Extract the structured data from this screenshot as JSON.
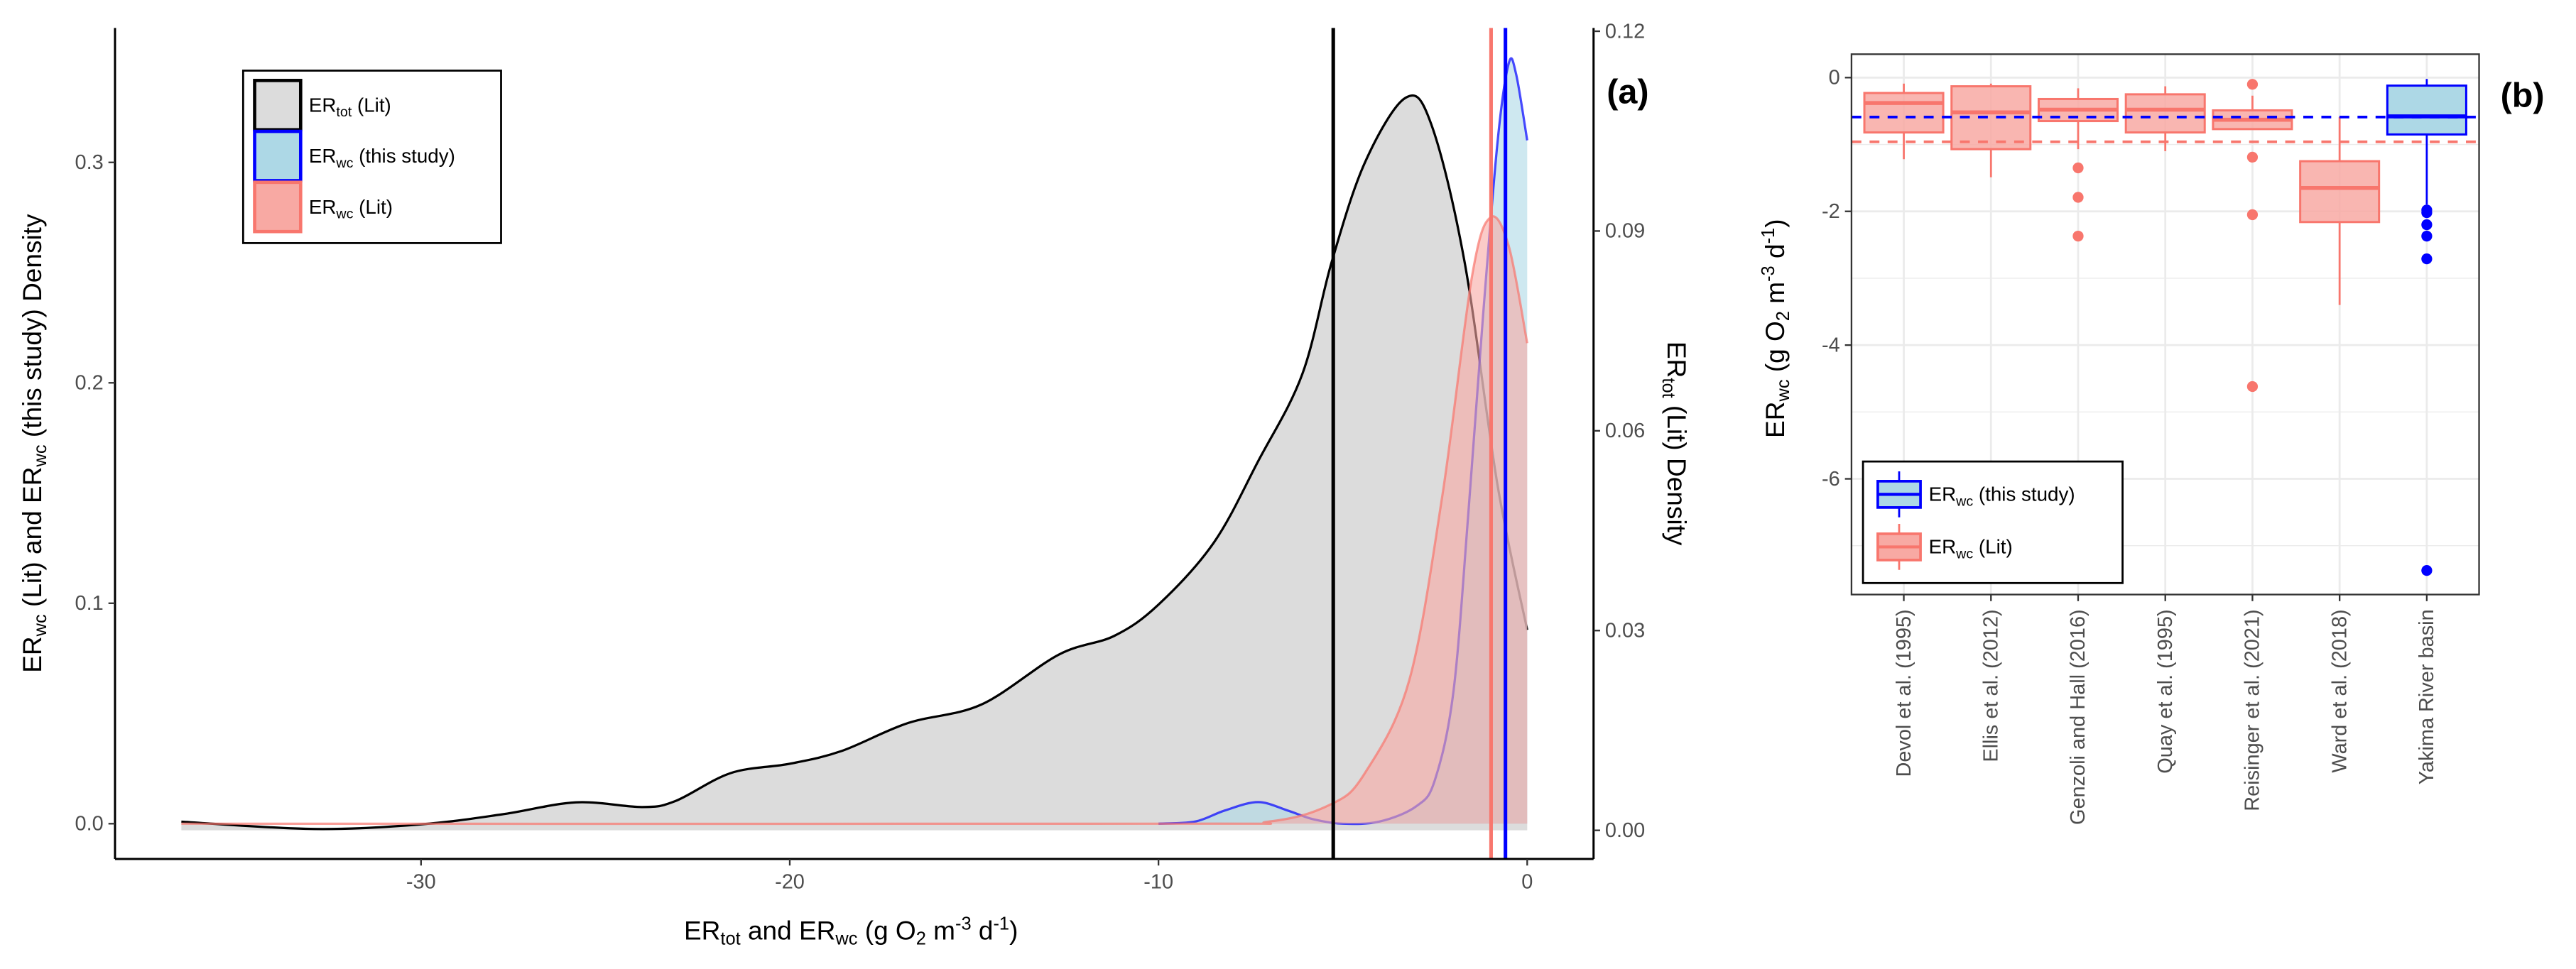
{
  "chart_data": [
    {
      "panel_label": "(a)",
      "type": "area",
      "xlabel": {
        "main": "ER",
        "sub1": "tot",
        "mid": " and ER",
        "sub2": "wc",
        "tail": " (g O",
        "sub3": "2",
        "tail2": " m",
        "sup1": "-3",
        "tail3": " d",
        "sup2": "-1",
        "end": ")"
      },
      "ylabel_left": {
        "a": "ER",
        "sub1": "wc",
        "b": " (Lit) and ER",
        "sub2": "wc",
        "c": " (this study) Density"
      },
      "ylabel_right": {
        "a": "ER",
        "sub": "tot",
        "b": " (Lit) Density"
      },
      "xlim": [
        -38.3,
        1.8
      ],
      "ylim_left": [
        -0.016,
        0.361
      ],
      "ylim_right": [
        -0.0043,
        0.1205
      ],
      "xticks": [
        "-30",
        "-20",
        "-10",
        "0"
      ],
      "xtick_values": [
        -30,
        -20,
        -10,
        0
      ],
      "yticks_left": [
        "0.0",
        "0.1",
        "0.2",
        "0.3"
      ],
      "ytick_values_left": [
        0,
        0.1,
        0.2,
        0.3
      ],
      "yticks_right": [
        "0.00",
        "0.03",
        "0.06",
        "0.09",
        "0.12"
      ],
      "ytick_values_right": [
        0,
        0.03,
        0.06,
        0.09,
        0.12
      ],
      "grid": false,
      "legend_position": "top-left",
      "series": [
        {
          "name": {
            "a": "ER",
            "sub": "tot",
            "b": " (Lit)"
          },
          "axis": "right",
          "line_color": "#000000",
          "fill_color": "#dcdcdc",
          "x": [
            -36.5,
            -32.9,
            -30,
            -27.8,
            -25.8,
            -24.0,
            -23.1,
            -21.6,
            -20,
            -18.6,
            -16.8,
            -14.8,
            -12.7,
            -11.2,
            -10,
            -8.5,
            -7.3,
            -6.1,
            -5.3,
            -4.4,
            -3.3,
            -2.6,
            -1.7,
            -0.8,
            0
          ],
          "y": [
            0.0013,
            0.0002,
            0.0009,
            0.0024,
            0.0042,
            0.0035,
            0.0044,
            0.0086,
            0.01,
            0.0119,
            0.0161,
            0.0189,
            0.0264,
            0.0292,
            0.0339,
            0.0432,
            0.0554,
            0.0685,
            0.0854,
            0.1003,
            0.11,
            0.106,
            0.0854,
            0.0517,
            0.0301
          ],
          "mean_line": -5.26
        },
        {
          "name": {
            "a": "ER",
            "sub": "wc",
            "b": " (this study)"
          },
          "axis": "left",
          "line_color": "#0000ff",
          "fill_color": "#add8e6",
          "x": [
            -10,
            -9,
            -8.2,
            -7.3,
            -6.5,
            -5.8,
            -5,
            -4,
            -3,
            -2.5,
            -2,
            -1.6,
            -1.2,
            -0.8,
            -0.5,
            -0.3,
            0
          ],
          "y": [
            0,
            0.001,
            0.006,
            0.0098,
            0.006,
            0.002,
            0,
            0.001,
            0.008,
            0.02,
            0.06,
            0.14,
            0.23,
            0.31,
            0.345,
            0.34,
            0.31
          ],
          "mean_line": -0.59
        },
        {
          "name": {
            "a": "ER",
            "sub": "wc",
            "b": " (Lit)"
          },
          "axis": "left",
          "line_color": "#f8766d",
          "fill_color": "#f8a9a3",
          "x": [
            -36.5,
            -10,
            -7,
            -5.3,
            -4.4,
            -3.2,
            -2.3,
            -1.5,
            -1.0,
            -0.5,
            0
          ],
          "y": [
            0,
            0,
            0.001,
            0.009,
            0.023,
            0.065,
            0.149,
            0.248,
            0.275,
            0.262,
            0.218
          ],
          "mean_line": -0.98
        }
      ]
    },
    {
      "panel_label": "(b)",
      "type": "box",
      "ylabel": {
        "a": "ER",
        "sub": "wc",
        "b": " (g O",
        "sub2": "2",
        "c": " m",
        "sup1": "-3",
        "d": " d",
        "sup2": "-1",
        "e": ")"
      },
      "ylim": [
        -7.73,
        0.35
      ],
      "yticks": [
        "0",
        "-2",
        "-4",
        "-6"
      ],
      "ytick_values": [
        0,
        -2,
        -4,
        -6
      ],
      "grid": true,
      "legend_position": "bottom-left",
      "categories": [
        "Devol et al. (1995)",
        "Ellis et al. (2012)",
        "Genzoli and Hall (2016)",
        "Quay et al. (1995)",
        "Reisinger et al. (2021)",
        "Ward et al. (2018)",
        "Yakima River basin"
      ],
      "boxes": [
        {
          "group": "lit",
          "whisker_high": -0.09,
          "q3": -0.23,
          "median": -0.38,
          "q1": -0.82,
          "whisker_low": -1.22,
          "outliers": []
        },
        {
          "group": "lit",
          "whisker_high": -0.09,
          "q3": -0.13,
          "median": -0.52,
          "q1": -1.07,
          "whisker_low": -1.49,
          "outliers": []
        },
        {
          "group": "lit",
          "whisker_high": -0.16,
          "q3": -0.32,
          "median": -0.48,
          "q1": -0.65,
          "whisker_low": -1.07,
          "outliers": [
            -1.35,
            -1.79,
            -2.37
          ]
        },
        {
          "group": "lit",
          "whisker_high": -0.13,
          "q3": -0.25,
          "median": -0.48,
          "q1": -0.82,
          "whisker_low": -1.1,
          "outliers": []
        },
        {
          "group": "lit",
          "whisker_high": -0.27,
          "q3": -0.49,
          "median": -0.63,
          "q1": -0.77,
          "whisker_low": -0.77,
          "outliers": [
            -0.1,
            -1.19,
            -2.05,
            -4.62
          ]
        },
        {
          "group": "lit",
          "whisker_high": -0.59,
          "q3": -1.25,
          "median": -1.65,
          "q1": -2.16,
          "whisker_low": -3.4,
          "outliers": []
        },
        {
          "group": "study",
          "whisker_high": -0.02,
          "q3": -0.12,
          "median": -0.58,
          "q1": -0.85,
          "whisker_low": -1.9,
          "outliers": [
            -1.98,
            -2.02,
            -2.2,
            -2.37,
            -2.71,
            -7.37
          ]
        }
      ],
      "reference_lines": [
        {
          "group": "study",
          "value": -0.59,
          "color": "#0000ff"
        },
        {
          "group": "lit",
          "value": -0.96,
          "color": "#f8766d"
        }
      ],
      "legend": [
        {
          "group": "study",
          "a": "ER",
          "sub": "wc",
          "b": " (this study)",
          "line_color": "#0000ff",
          "fill_color": "#add8e6"
        },
        {
          "group": "lit",
          "a": "ER",
          "sub": "wc",
          "b": " (Lit)",
          "line_color": "#f8766d",
          "fill_color": "#f8a9a3"
        }
      ]
    }
  ]
}
